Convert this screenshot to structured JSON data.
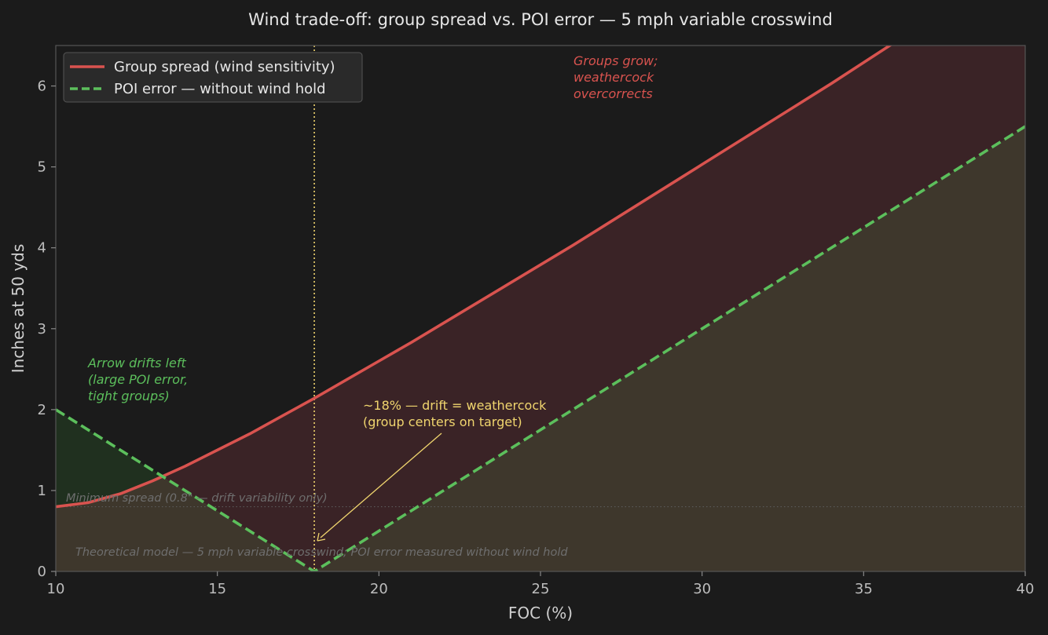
{
  "chart_data": {
    "type": "line",
    "title": "Wind trade-off: group spread vs. POI error — 5 mph variable crosswind",
    "xlabel": "FOC (%)",
    "ylabel": "Inches at 50 yds",
    "xlim": [
      10,
      40
    ],
    "ylim": [
      0,
      6.5
    ],
    "xticks": [
      "10",
      "15",
      "20",
      "25",
      "30",
      "35",
      "40"
    ],
    "yticks": [
      "0",
      "1",
      "2",
      "3",
      "4",
      "5",
      "6"
    ],
    "grid": false,
    "legend_position": "top-left",
    "series": [
      {
        "name": "Group spread (wind sensitivity)",
        "style": "solid",
        "color": "#d9534f",
        "x": [
          10,
          11,
          12,
          13,
          14,
          15,
          16,
          17,
          18,
          19,
          20,
          21,
          22,
          23,
          24,
          25,
          26,
          27,
          28,
          29,
          30,
          31,
          32,
          33,
          34,
          35,
          36
        ],
        "y": [
          0.8,
          0.85,
          0.96,
          1.12,
          1.3,
          1.5,
          1.7,
          1.92,
          2.14,
          2.37,
          2.6,
          2.83,
          3.07,
          3.31,
          3.55,
          3.79,
          4.03,
          4.28,
          4.53,
          4.78,
          5.03,
          5.28,
          5.53,
          5.78,
          6.03,
          6.29,
          6.55
        ]
      },
      {
        "name": "POI error — without wind hold",
        "style": "dashed",
        "color": "#5cbf5c",
        "x": [
          10,
          18,
          40
        ],
        "y": [
          2.0,
          0.0,
          5.5
        ]
      }
    ],
    "reference_lines": [
      {
        "orientation": "vertical",
        "x": 18,
        "color": "#f0d56e"
      },
      {
        "orientation": "horizontal",
        "y": 0.8,
        "color": "#5a5a5a"
      }
    ],
    "annotations": {
      "left": [
        "Arrow drifts left",
        "(large POI error,",
        "tight groups)"
      ],
      "right": [
        "Groups grow;",
        "weathercock",
        "overcorrects"
      ],
      "optimum": [
        "~18% — drift = weathercock",
        "(group centers on target)"
      ],
      "min_spread": "Minimum spread (0.8\" — drift variability only)",
      "model_note": "Theoretical model — 5 mph variable crosswind; POI error measured without wind hold"
    },
    "colors": {
      "background": "#1b1b1b",
      "spread": "#d9534f",
      "poi": "#5cbf5c",
      "optimum": "#f0d56e",
      "fill_red": "#3a2326",
      "fill_olive": "#3e372c",
      "fill_green": "#20301f"
    }
  }
}
